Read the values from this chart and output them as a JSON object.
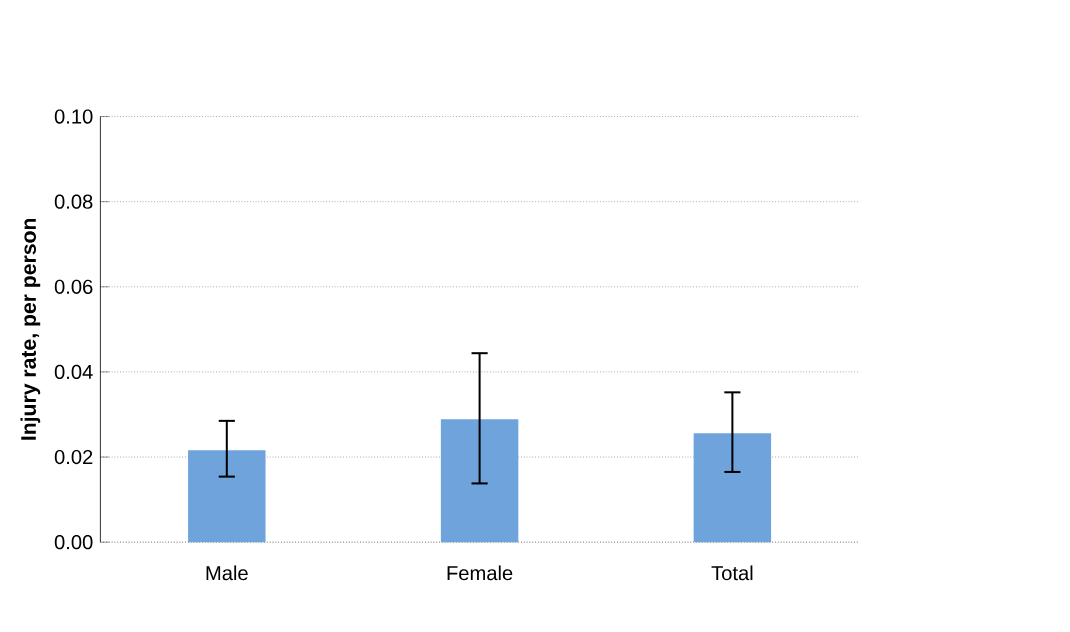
{
  "chart_data": {
    "type": "bar",
    "ylabel": "Injury rate, per person",
    "categories": [
      "Male",
      "Female",
      "Total"
    ],
    "values": [
      0.0216,
      0.0289,
      0.0256
    ],
    "errors": [
      [
        0.0154,
        0.0285
      ],
      [
        0.0138,
        0.0444
      ],
      [
        0.0165,
        0.0352
      ]
    ],
    "color": "#6fa3dc",
    "ylim": [
      0,
      0.1
    ],
    "yticks": [
      {
        "value": 0,
        "label": "0.00"
      },
      {
        "value": 0.02,
        "label": "0.02"
      },
      {
        "value": 0.04,
        "label": "0.04"
      },
      {
        "value": 0.06,
        "label": "0.06"
      },
      {
        "value": 0.08,
        "label": "0.08"
      },
      {
        "value": 0.1,
        "label": "0.10"
      }
    ],
    "grid": "y"
  }
}
